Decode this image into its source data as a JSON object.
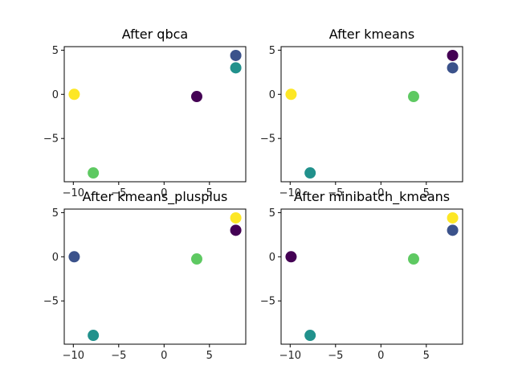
{
  "figure": {
    "background": "#ffffff"
  },
  "chart_data": [
    {
      "type": "scatter",
      "title": "After qbca",
      "xlim": [
        -11,
        9
      ],
      "ylim": [
        -9.9,
        5.4
      ],
      "xticks": [
        -10,
        -5,
        0,
        5
      ],
      "yticks": [
        5,
        0,
        -5
      ],
      "xtick_labels": [
        "−10",
        "−5",
        "0",
        "5"
      ],
      "ytick_labels": [
        "5",
        "0",
        "−5"
      ],
      "points": [
        {
          "x": -9.9,
          "y": 0.0,
          "color": "#fde725"
        },
        {
          "x": -7.8,
          "y": -8.9,
          "color": "#5ec962"
        },
        {
          "x": 3.6,
          "y": -0.25,
          "color": "#440154"
        },
        {
          "x": 7.9,
          "y": 4.4,
          "color": "#3b528b"
        },
        {
          "x": 7.9,
          "y": 3.0,
          "color": "#21918c"
        }
      ]
    },
    {
      "type": "scatter",
      "title": "After kmeans",
      "xlim": [
        -11,
        9
      ],
      "ylim": [
        -9.9,
        5.4
      ],
      "xticks": [
        -10,
        -5,
        0,
        5
      ],
      "yticks": [
        5,
        0,
        -5
      ],
      "xtick_labels": [
        "−10",
        "−5",
        "0",
        "5"
      ],
      "ytick_labels": [
        "5",
        "0",
        "−5"
      ],
      "points": [
        {
          "x": -9.9,
          "y": 0.0,
          "color": "#fde725"
        },
        {
          "x": -7.8,
          "y": -8.9,
          "color": "#21918c"
        },
        {
          "x": 3.6,
          "y": -0.25,
          "color": "#5ec962"
        },
        {
          "x": 7.9,
          "y": 4.4,
          "color": "#440154"
        },
        {
          "x": 7.9,
          "y": 3.0,
          "color": "#3b528b"
        }
      ]
    },
    {
      "type": "scatter",
      "title": "After kmeans_plusplus",
      "xlim": [
        -11,
        9
      ],
      "ylim": [
        -9.9,
        5.4
      ],
      "xticks": [
        -10,
        -5,
        0,
        5
      ],
      "yticks": [
        5,
        0,
        -5
      ],
      "xtick_labels": [
        "−10",
        "−5",
        "0",
        "5"
      ],
      "ytick_labels": [
        "5",
        "0",
        "−5"
      ],
      "points": [
        {
          "x": -9.9,
          "y": 0.0,
          "color": "#3b528b"
        },
        {
          "x": -7.8,
          "y": -8.9,
          "color": "#21918c"
        },
        {
          "x": 3.6,
          "y": -0.25,
          "color": "#5ec962"
        },
        {
          "x": 7.9,
          "y": 4.4,
          "color": "#fde725"
        },
        {
          "x": 7.9,
          "y": 3.0,
          "color": "#440154"
        }
      ]
    },
    {
      "type": "scatter",
      "title": "After minibatch_kmeans",
      "xlim": [
        -11,
        9
      ],
      "ylim": [
        -9.9,
        5.4
      ],
      "xticks": [
        -10,
        -5,
        0,
        5
      ],
      "yticks": [
        5,
        0,
        -5
      ],
      "xtick_labels": [
        "−10",
        "−5",
        "0",
        "5"
      ],
      "ytick_labels": [
        "5",
        "0",
        "−5"
      ],
      "points": [
        {
          "x": -9.9,
          "y": 0.0,
          "color": "#440154"
        },
        {
          "x": -7.8,
          "y": -8.9,
          "color": "#21918c"
        },
        {
          "x": 3.6,
          "y": -0.25,
          "color": "#5ec962"
        },
        {
          "x": 7.9,
          "y": 4.4,
          "color": "#fde725"
        },
        {
          "x": 7.9,
          "y": 3.0,
          "color": "#3b528b"
        }
      ]
    }
  ]
}
